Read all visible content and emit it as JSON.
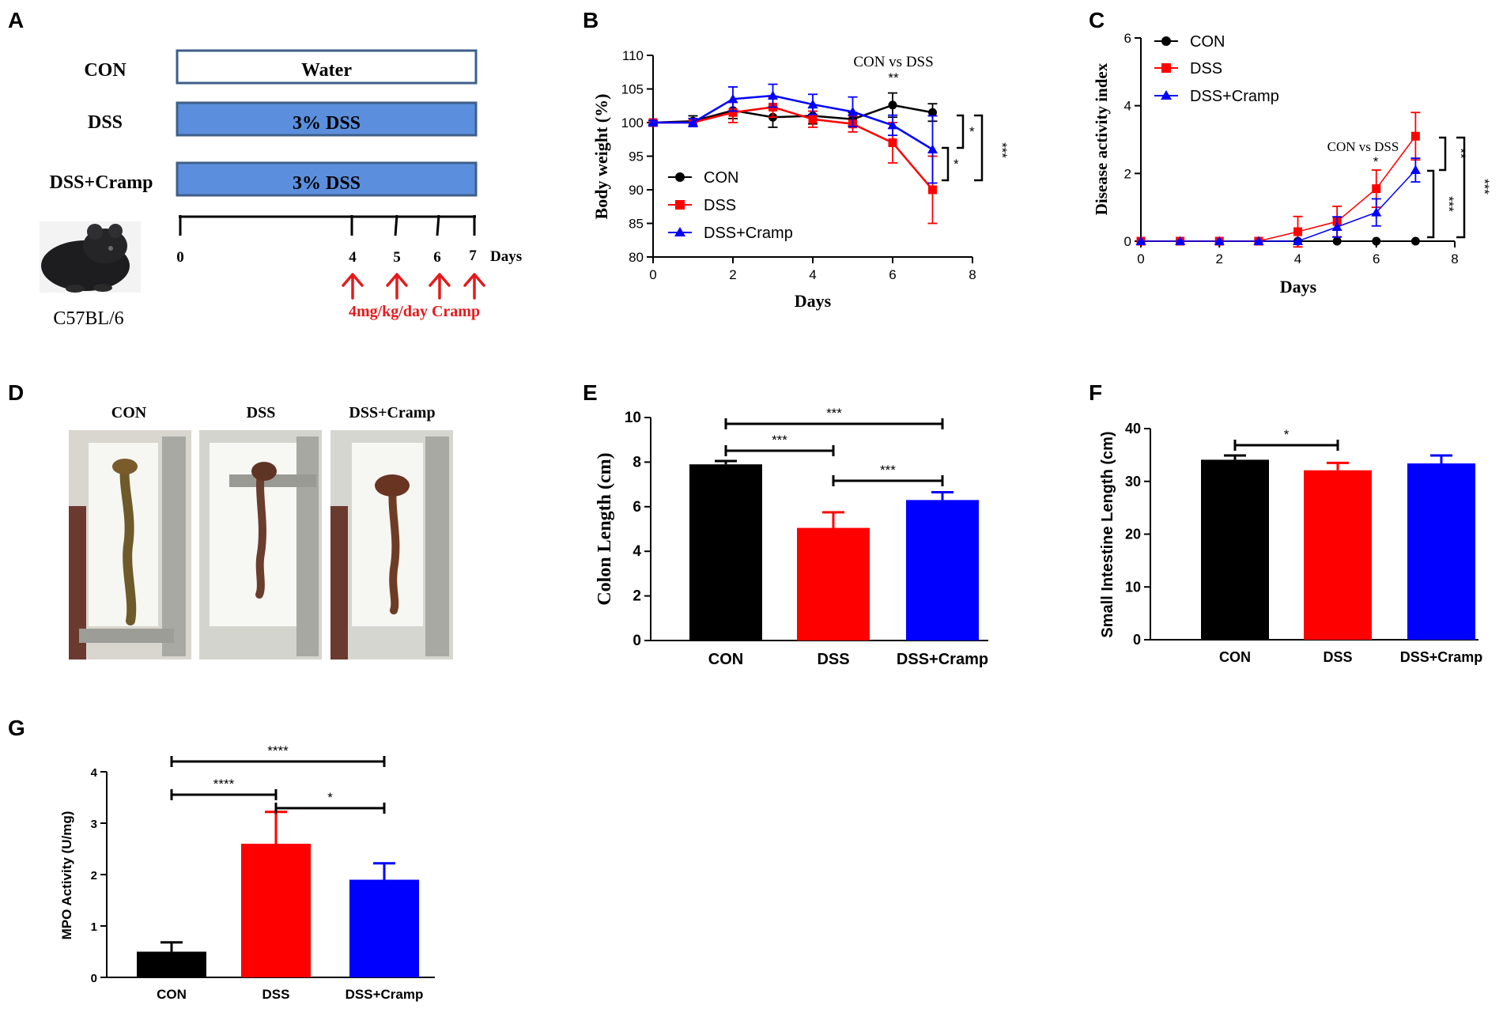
{
  "colors": {
    "con": "#000000",
    "dss": "#ff0000",
    "cramp": "#0000ff",
    "dss_bar": "#5b8fdd",
    "arrow": "#e41a1c"
  },
  "panel_a": {
    "letter": "A",
    "groups": [
      {
        "name": "CON",
        "treatment": "Water"
      },
      {
        "name": "DSS",
        "treatment": "3% DSS"
      },
      {
        "name": "DSS+Cramp",
        "treatment": "3% DSS"
      }
    ],
    "timeline_ticks": [
      "0",
      "4",
      "5",
      "6",
      "7"
    ],
    "days_label": "Days",
    "dose_label": "4mg/kg/day Cramp",
    "strain_label": "C57BL/6",
    "mouse_icon": "mouse-image"
  },
  "panel_d": {
    "letter": "D",
    "photos": [
      {
        "label": "CON"
      },
      {
        "label": "DSS"
      },
      {
        "label": "DSS+Cramp"
      }
    ]
  },
  "chart_data": [
    {
      "id": "B",
      "type": "line",
      "letter": "B",
      "xlabel": "Days",
      "ylabel": "Body weight (%)",
      "xlim": [
        0,
        8
      ],
      "ylim": [
        80,
        110
      ],
      "xticks": [
        0,
        2,
        4,
        6,
        8
      ],
      "yticks": [
        80,
        85,
        90,
        95,
        100,
        105,
        110
      ],
      "annotation": "CON vs DSS",
      "annotation_stars": "**",
      "brackets": [
        {
          "label": "*"
        },
        {
          "label": "*"
        },
        {
          "label": "***"
        }
      ],
      "legend": [
        "CON",
        "DSS",
        "DSS+Cramp"
      ],
      "series": [
        {
          "name": "CON",
          "x": [
            0,
            1,
            2,
            3,
            4,
            5,
            6,
            7
          ],
          "y": [
            100,
            100.2,
            101.8,
            100.8,
            101,
            100.5,
            102.6,
            101.5
          ],
          "err": [
            0.3,
            0.8,
            1.2,
            1.5,
            1.2,
            1.0,
            1.8,
            1.3
          ]
        },
        {
          "name": "DSS",
          "x": [
            0,
            1,
            2,
            3,
            4,
            5,
            6,
            7
          ],
          "y": [
            100,
            100,
            101.5,
            102.3,
            100.5,
            99.8,
            97,
            90
          ],
          "err": [
            0.3,
            0.6,
            1.5,
            1.5,
            1.2,
            1.2,
            3.0,
            5.0
          ]
        },
        {
          "name": "DSS+Cramp",
          "x": [
            0,
            1,
            2,
            3,
            4,
            5,
            6,
            7
          ],
          "y": [
            100,
            100,
            103.5,
            104,
            102.7,
            101.6,
            99.6,
            96
          ],
          "err": [
            0.3,
            0.6,
            1.8,
            1.7,
            1.5,
            2.2,
            1.5,
            5.0
          ]
        }
      ]
    },
    {
      "id": "C",
      "type": "line",
      "letter": "C",
      "xlabel": "Days",
      "ylabel": "Disease activity index",
      "xlim": [
        0,
        8
      ],
      "ylim": [
        0,
        6
      ],
      "xticks": [
        0,
        2,
        4,
        6,
        8
      ],
      "yticks": [
        0,
        2,
        4,
        6
      ],
      "annotation": "CON vs DSS",
      "annotation_stars": "*",
      "brackets": [
        {
          "label": "**"
        },
        {
          "label": "***"
        },
        {
          "label": "***"
        }
      ],
      "legend": [
        "CON",
        "DSS",
        "DSS+Cramp"
      ],
      "series": [
        {
          "name": "CON",
          "x": [
            0,
            1,
            2,
            3,
            4,
            5,
            6,
            7
          ],
          "y": [
            0,
            0,
            0,
            0,
            0,
            0,
            0,
            0
          ],
          "err": [
            0,
            0,
            0,
            0,
            0,
            0,
            0,
            0
          ]
        },
        {
          "name": "DSS",
          "x": [
            0,
            1,
            2,
            3,
            4,
            5,
            6,
            7
          ],
          "y": [
            0,
            0,
            0,
            0,
            0.28,
            0.58,
            1.55,
            3.1
          ],
          "err": [
            0,
            0,
            0,
            0,
            0.45,
            0.45,
            0.55,
            0.7
          ]
        },
        {
          "name": "DSS+Cramp",
          "x": [
            0,
            1,
            2,
            3,
            4,
            5,
            6,
            7
          ],
          "y": [
            0,
            0,
            0,
            0,
            0,
            0.42,
            0.85,
            2.1
          ],
          "err": [
            0,
            0,
            0,
            0,
            0,
            0.3,
            0.4,
            0.35
          ]
        }
      ]
    },
    {
      "id": "E",
      "type": "bar",
      "letter": "E",
      "ylabel": "Colon Length (cm)",
      "ylim": [
        0,
        10
      ],
      "yticks": [
        0,
        2,
        4,
        6,
        8,
        10
      ],
      "categories": [
        "CON",
        "DSS",
        "DSS+Cramp"
      ],
      "values": [
        7.9,
        5.05,
        6.3
      ],
      "errors": [
        0.15,
        0.7,
        0.35
      ],
      "brackets": [
        {
          "from": 0,
          "to": 2,
          "label": "***"
        },
        {
          "from": 0,
          "to": 1,
          "label": "***"
        },
        {
          "from": 1,
          "to": 2,
          "label": "***"
        }
      ]
    },
    {
      "id": "F",
      "type": "bar",
      "letter": "F",
      "ylabel": "Small Intestine Length (cm)",
      "ylim": [
        0,
        40
      ],
      "yticks": [
        0,
        10,
        20,
        30,
        40
      ],
      "categories": [
        "CON",
        "DSS",
        "DSS+Cramp"
      ],
      "values": [
        34.1,
        32.1,
        33.4
      ],
      "errors": [
        0.8,
        1.4,
        1.5
      ],
      "brackets": [
        {
          "from": 0,
          "to": 1,
          "label": "*"
        }
      ]
    },
    {
      "id": "G",
      "type": "bar",
      "letter": "G",
      "ylabel": "MPO Activity (U/mg)",
      "ylim": [
        0,
        4
      ],
      "yticks": [
        0,
        1,
        2,
        3,
        4
      ],
      "categories": [
        "CON",
        "DSS",
        "DSS+Cramp"
      ],
      "values": [
        0.5,
        2.6,
        1.9
      ],
      "errors": [
        0.18,
        0.62,
        0.32
      ],
      "brackets": [
        {
          "from": 0,
          "to": 2,
          "label": "****"
        },
        {
          "from": 0,
          "to": 1,
          "label": "****"
        },
        {
          "from": 1,
          "to": 2,
          "label": "*"
        }
      ]
    }
  ]
}
